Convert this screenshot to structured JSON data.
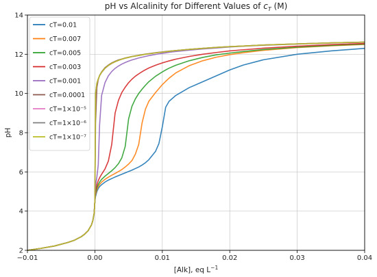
{
  "chart_data": {
    "type": "line",
    "title_main": "pH vs Alcalinity for Different Values of ",
    "title_var": "c",
    "title_sub": "T",
    "title_unit": " (M)",
    "xlabel_main": "[Alk], eq L",
    "xlabel_exp": "−1",
    "ylabel": "pH",
    "xlim": [
      -0.01,
      0.04
    ],
    "ylim": [
      2,
      14
    ],
    "xticks": [
      -0.01,
      0.0,
      0.01,
      0.02,
      0.03,
      0.04
    ],
    "xtick_labels": [
      "−0.01",
      "0.00",
      "0.01",
      "0.02",
      "0.03",
      "0.04"
    ],
    "yticks": [
      2,
      4,
      6,
      8,
      10,
      12,
      14
    ],
    "ytick_labels": [
      "2",
      "4",
      "6",
      "8",
      "10",
      "12",
      "14"
    ],
    "grid": true,
    "legend_position": "top-left",
    "x": [
      -0.01,
      -0.008,
      -0.006,
      -0.004,
      -0.003,
      -0.002,
      -0.0015,
      -0.001,
      -0.0005,
      -0.0003,
      -0.0001,
      0.0,
      0.0001,
      0.0003,
      0.0005,
      0.0007,
      0.001,
      0.0015,
      0.002,
      0.0025,
      0.003,
      0.0035,
      0.004,
      0.0045,
      0.005,
      0.0055,
      0.006,
      0.0065,
      0.007,
      0.0075,
      0.008,
      0.009,
      0.0095,
      0.01,
      0.0105,
      0.011,
      0.012,
      0.014,
      0.016,
      0.018,
      0.02,
      0.022,
      0.025,
      0.03,
      0.035,
      0.04
    ],
    "series": [
      {
        "name": "cT=0.01",
        "color": "#1f77b4",
        "values": [
          2.0,
          2.1,
          2.22,
          2.4,
          2.52,
          2.7,
          2.83,
          3.0,
          3.3,
          3.52,
          3.9,
          4.5,
          4.75,
          5.0,
          5.15,
          5.25,
          5.35,
          5.48,
          5.58,
          5.66,
          5.74,
          5.81,
          5.88,
          5.95,
          6.02,
          6.09,
          6.17,
          6.25,
          6.35,
          6.47,
          6.62,
          7.05,
          7.45,
          8.3,
          9.3,
          9.6,
          9.9,
          10.3,
          10.6,
          10.9,
          11.2,
          11.45,
          11.72,
          12.0,
          12.17,
          12.3
        ]
      },
      {
        "name": "cT=0.007",
        "color": "#ff7f0e",
        "values": [
          2.0,
          2.1,
          2.22,
          2.4,
          2.52,
          2.7,
          2.83,
          3.0,
          3.3,
          3.52,
          3.9,
          4.5,
          4.85,
          5.1,
          5.25,
          5.36,
          5.48,
          5.62,
          5.73,
          5.83,
          5.92,
          6.02,
          6.12,
          6.25,
          6.4,
          6.58,
          6.9,
          7.4,
          8.5,
          9.2,
          9.6,
          10.05,
          10.25,
          10.45,
          10.62,
          10.78,
          11.05,
          11.42,
          11.67,
          11.85,
          11.98,
          12.08,
          12.2,
          12.34,
          12.43,
          12.5
        ]
      },
      {
        "name": "cT=0.005",
        "color": "#2ca02c",
        "values": [
          2.0,
          2.1,
          2.22,
          2.4,
          2.52,
          2.7,
          2.83,
          3.0,
          3.3,
          3.52,
          3.9,
          4.5,
          4.95,
          5.2,
          5.36,
          5.48,
          5.62,
          5.78,
          5.92,
          6.06,
          6.22,
          6.42,
          6.72,
          7.3,
          8.7,
          9.35,
          9.72,
          10.0,
          10.22,
          10.42,
          10.6,
          10.88,
          10.99,
          11.1,
          11.2,
          11.29,
          11.44,
          11.67,
          11.84,
          11.97,
          12.06,
          12.14,
          12.24,
          12.36,
          12.45,
          12.52
        ]
      },
      {
        "name": "cT=0.003",
        "color": "#d62728",
        "values": [
          2.0,
          2.1,
          2.22,
          2.4,
          2.52,
          2.7,
          2.83,
          3.0,
          3.3,
          3.52,
          3.9,
          4.5,
          5.05,
          5.35,
          5.55,
          5.7,
          5.88,
          6.15,
          6.55,
          7.4,
          9.0,
          9.65,
          10.05,
          10.32,
          10.55,
          10.73,
          10.88,
          11.0,
          11.11,
          11.21,
          11.3,
          11.44,
          11.5,
          11.56,
          11.61,
          11.66,
          11.75,
          11.89,
          12.0,
          12.09,
          12.17,
          12.23,
          12.31,
          12.41,
          12.49,
          12.55
        ]
      },
      {
        "name": "cT=0.001",
        "color": "#9467bd",
        "values": [
          2.0,
          2.1,
          2.22,
          2.4,
          2.52,
          2.7,
          2.83,
          3.0,
          3.3,
          3.52,
          3.9,
          4.5,
          5.3,
          5.75,
          6.35,
          8.4,
          9.9,
          10.55,
          10.9,
          11.12,
          11.28,
          11.4,
          11.5,
          11.58,
          11.65,
          11.71,
          11.76,
          11.81,
          11.85,
          11.89,
          11.93,
          11.99,
          12.02,
          12.05,
          12.07,
          12.1,
          12.14,
          12.21,
          12.27,
          12.32,
          12.37,
          12.41,
          12.46,
          12.52,
          12.57,
          12.61
        ]
      },
      {
        "name": "cT=0.0001",
        "color": "#8c564b",
        "values": [
          2.0,
          2.1,
          2.22,
          2.4,
          2.52,
          2.7,
          2.83,
          3.0,
          3.3,
          3.52,
          3.9,
          4.5,
          8.5,
          10.3,
          10.7,
          10.92,
          11.1,
          11.32,
          11.45,
          11.56,
          11.64,
          11.71,
          11.76,
          11.81,
          11.85,
          11.89,
          11.92,
          11.95,
          11.98,
          12.01,
          12.03,
          12.08,
          12.1,
          12.12,
          12.14,
          12.16,
          12.19,
          12.25,
          12.3,
          12.35,
          12.39,
          12.42,
          12.47,
          12.53,
          12.58,
          12.62
        ]
      },
      {
        "name": "cT=1×10⁻⁵",
        "color": "#e377c2",
        "values": [
          2.0,
          2.1,
          2.22,
          2.4,
          2.52,
          2.7,
          2.83,
          3.0,
          3.3,
          3.52,
          3.9,
          4.5,
          9.95,
          10.5,
          10.72,
          10.9,
          11.07,
          11.28,
          11.42,
          11.53,
          11.62,
          11.69,
          11.75,
          11.8,
          11.84,
          11.88,
          11.91,
          11.94,
          11.97,
          12.0,
          12.02,
          12.07,
          12.09,
          12.11,
          12.13,
          12.15,
          12.19,
          12.25,
          12.3,
          12.35,
          12.39,
          12.42,
          12.47,
          12.53,
          12.58,
          12.62
        ]
      },
      {
        "name": "cT=1×10⁻⁶",
        "color": "#7f7f7f",
        "values": [
          2.0,
          2.1,
          2.22,
          2.4,
          2.52,
          2.7,
          2.83,
          3.0,
          3.3,
          3.52,
          3.9,
          4.5,
          10.0,
          10.52,
          10.74,
          10.91,
          11.08,
          11.29,
          11.43,
          11.54,
          11.62,
          11.69,
          11.75,
          11.8,
          11.84,
          11.88,
          11.91,
          11.94,
          11.97,
          12.0,
          12.02,
          12.07,
          12.09,
          12.11,
          12.13,
          12.15,
          12.19,
          12.25,
          12.3,
          12.35,
          12.39,
          12.42,
          12.47,
          12.53,
          12.58,
          12.62
        ]
      },
      {
        "name": "cT=1×10⁻⁷",
        "color": "#bcbd22",
        "values": [
          2.0,
          2.1,
          2.22,
          2.4,
          2.52,
          2.7,
          2.83,
          3.0,
          3.3,
          3.52,
          3.9,
          4.5,
          10.0,
          10.52,
          10.74,
          10.91,
          11.08,
          11.29,
          11.43,
          11.54,
          11.62,
          11.69,
          11.75,
          11.8,
          11.84,
          11.88,
          11.91,
          11.94,
          11.97,
          12.0,
          12.02,
          12.07,
          12.09,
          12.11,
          12.13,
          12.15,
          12.19,
          12.25,
          12.3,
          12.35,
          12.39,
          12.42,
          12.47,
          12.53,
          12.58,
          12.62
        ]
      }
    ]
  }
}
